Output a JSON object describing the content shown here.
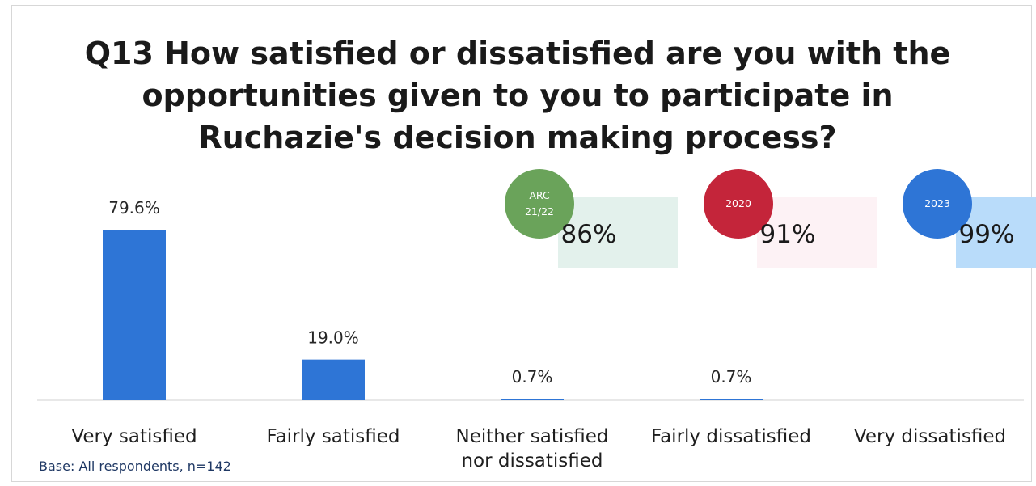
{
  "chart_data": {
    "type": "bar",
    "title_lines": [
      "Q13 How satisfied or dissatisfied are you with the",
      "opportunities given to you to participate in",
      "Ruchazie's decision making process?"
    ],
    "categories": [
      [
        "Very satisfied"
      ],
      [
        "Fairly satisfied"
      ],
      [
        "Neither satisfied",
        "nor dissatisfied"
      ],
      [
        "Fairly dissatisfied"
      ],
      [
        "Very dissatisfied"
      ]
    ],
    "values": [
      79.6,
      19.0,
      0.7,
      0.7,
      0.0
    ],
    "value_labels": [
      "79.6%",
      "19.0%",
      "0.7%",
      "0.7%",
      ""
    ],
    "bar_color": "#2e75d6",
    "ylim": [
      0,
      100
    ],
    "grid": false,
    "legend": "none",
    "comparisons": [
      {
        "badge": [
          "ARC",
          "21/22"
        ],
        "value": "86%",
        "badge_color": "#6aa35a",
        "box_color": "#e3f1ec"
      },
      {
        "badge": [
          "2020"
        ],
        "value": "91%",
        "badge_color": "#c4253a",
        "box_color": "#fdf2f5"
      },
      {
        "badge": [
          "2023"
        ],
        "value": "99%",
        "badge_color": "#2e75d6",
        "box_color": "#b9dcfa"
      }
    ]
  },
  "base_note": "Base: All respondents, n=142"
}
